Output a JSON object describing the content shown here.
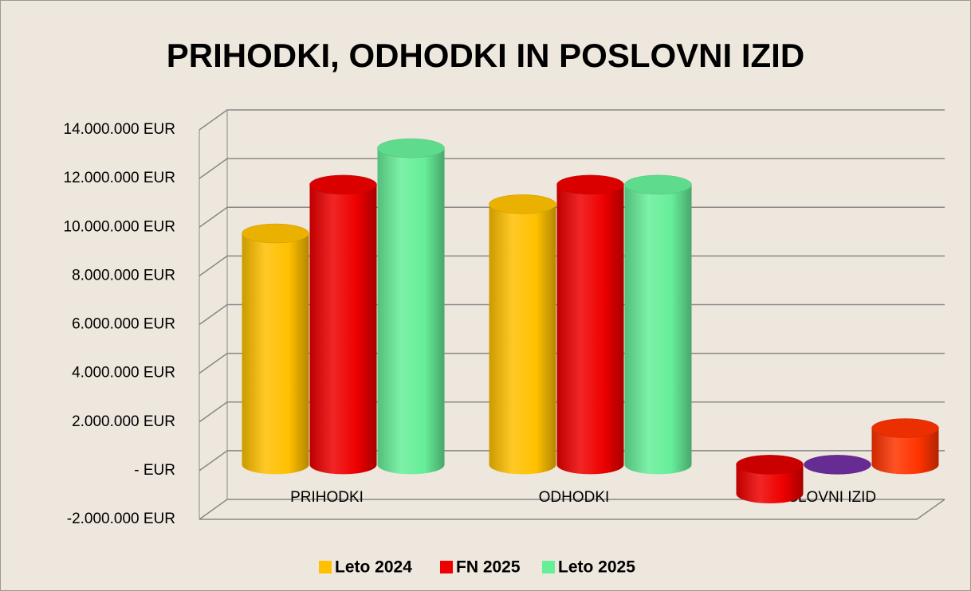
{
  "chart_data": {
    "type": "bar3d",
    "title": "PRIHODKI, ODHODKI IN POSLOVNI IZID",
    "categories": [
      "PRIHODKI",
      "ODHODKI",
      "POSLOVNI IZID"
    ],
    "series": [
      {
        "name": "Leto 2024",
        "color": "#ffc000",
        "colors": [
          "#ffc000",
          "#ffc000",
          "#ee0000"
        ],
        "values": [
          9500000,
          10700000,
          -1200000
        ]
      },
      {
        "name": "FN 2025",
        "color": "#ee0000",
        "colors": [
          "#ee0000",
          "#ee0000",
          "#7030a0"
        ],
        "values": [
          11500000,
          11500000,
          0
        ]
      },
      {
        "name": "Leto 2025",
        "color": "#66ee99",
        "colors": [
          "#66ee99",
          "#66ee99",
          "#ff3300"
        ],
        "values": [
          13000000,
          11500000,
          1500000
        ]
      }
    ],
    "ylim": [
      -2000000,
      14000000
    ],
    "yticks": [
      {
        "value": -2000000,
        "label": "-2.000.000 EUR"
      },
      {
        "value": 0,
        "label": "- EUR"
      },
      {
        "value": 2000000,
        "label": "2.000.000 EUR"
      },
      {
        "value": 4000000,
        "label": "4.000.000 EUR"
      },
      {
        "value": 6000000,
        "label": "6.000.000 EUR"
      },
      {
        "value": 8000000,
        "label": "8.000.000 EUR"
      },
      {
        "value": 10000000,
        "label": "10.000.000 EUR"
      },
      {
        "value": 12000000,
        "label": "12.000.000 EUR"
      },
      {
        "value": 14000000,
        "label": "14.000.000 EUR"
      }
    ],
    "grid": true,
    "legend": "bottom"
  }
}
